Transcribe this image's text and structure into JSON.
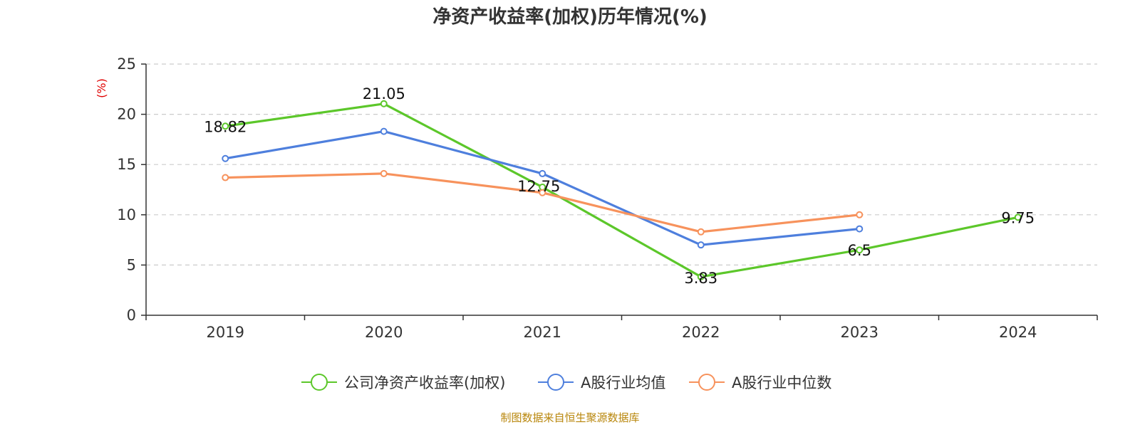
{
  "chart_data": {
    "type": "line",
    "title": "净资产收益率(加权)历年情况(%)",
    "ylabel": "(%)",
    "categories": [
      "2019",
      "2020",
      "2021",
      "2022",
      "2023",
      "2024"
    ],
    "ylim": [
      0,
      25
    ],
    "yticks": [
      "0",
      "5",
      "10",
      "15",
      "20",
      "25"
    ],
    "grid": true,
    "legend_position": "bottom",
    "series": [
      {
        "name": "公司净资产收益率(加权)",
        "color": "#5cc72a",
        "values": [
          18.82,
          21.05,
          12.75,
          3.83,
          6.5,
          9.75
        ],
        "labels": [
          "18.82",
          "21.05",
          "12.75",
          "3.83",
          "6.5",
          "9.75"
        ]
      },
      {
        "name": "A股行业均值",
        "color": "#4e7fdd",
        "values": [
          15.6,
          18.3,
          14.1,
          7.0,
          8.6,
          null
        ]
      },
      {
        "name": "A股行业中位数",
        "color": "#f7925c",
        "values": [
          13.7,
          14.1,
          12.2,
          8.3,
          10.0,
          null
        ]
      }
    ]
  },
  "source": "制图数据来自恒生聚源数据库"
}
